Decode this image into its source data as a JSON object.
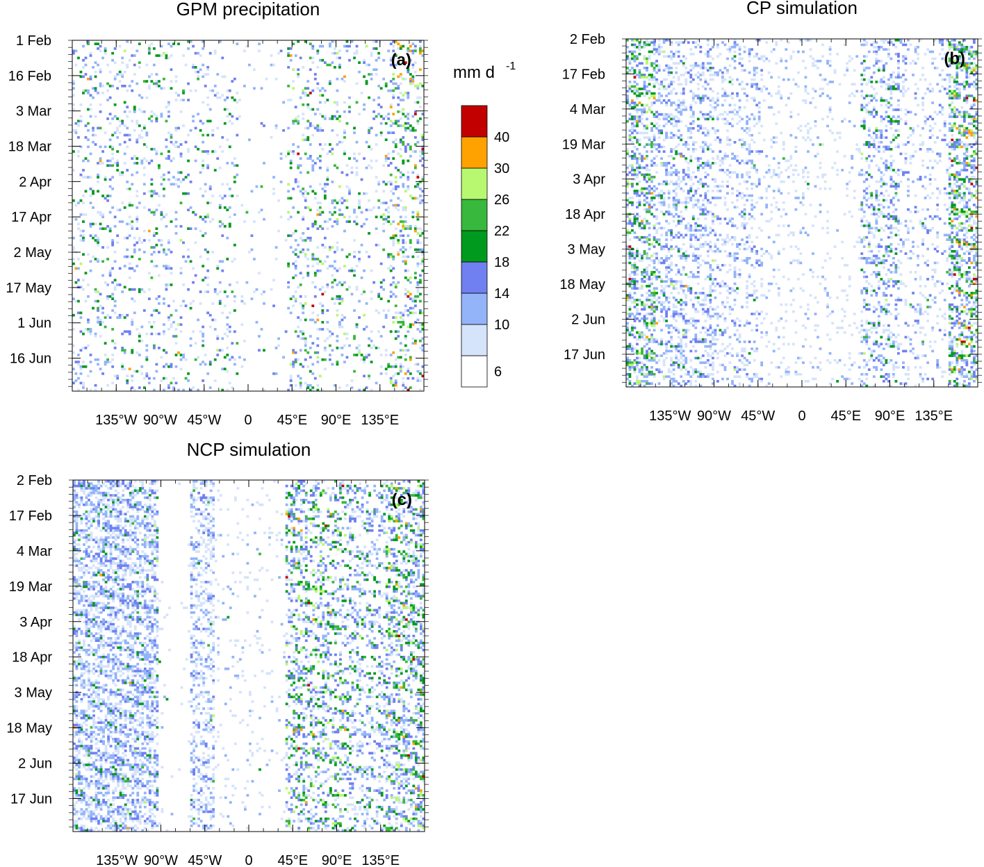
{
  "chart_data": [
    {
      "type": "heatmap",
      "panel_label": "(a)",
      "title": "GPM precipitation",
      "xlabel": "",
      "ylabel": "",
      "x_ticks": [
        "135°W",
        "90°W",
        "45°W",
        "0",
        "45°E",
        "90°E",
        "135°E"
      ],
      "x_tick_values": [
        -135,
        -90,
        -45,
        0,
        45,
        90,
        135
      ],
      "x_range": [
        -180,
        180
      ],
      "y_ticks": [
        "1 Feb",
        "16 Feb",
        "3 Mar",
        "18 Mar",
        "2 Apr",
        "17 Apr",
        "2 May",
        "17 May",
        "1 Jun",
        "16 Jun"
      ],
      "y_range": [
        "1 Feb",
        "29 Jun"
      ],
      "y_direction": "time increases downward",
      "colorbar": "shared",
      "structure": "scattered, mostly eastward-propagating rain streaks across all longitudes; most intense near 150°E–180° and around 60°E–90°E"
    },
    {
      "type": "heatmap",
      "panel_label": "(b)",
      "title": "CP simulation",
      "xlabel": "",
      "ylabel": "",
      "x_ticks": [
        "135°W",
        "90°W",
        "45°W",
        "0",
        "45°E",
        "90°E",
        "135°E"
      ],
      "x_tick_values": [
        -135,
        -90,
        -45,
        0,
        45,
        90,
        135
      ],
      "x_range": [
        -180,
        180
      ],
      "y_ticks": [
        "2 Feb",
        "17 Feb",
        "4 Mar",
        "19 Mar",
        "3 Apr",
        "18 Apr",
        "3 May",
        "18 May",
        "2 Jun",
        "17 Jun"
      ],
      "y_range": [
        "2 Feb",
        "30 Jun"
      ],
      "y_direction": "time increases downward",
      "colorbar": "shared",
      "structure": "widespread light precipitation (6–14 mm/d) with heavier bands near 180°, 150°E–180°E and 60°E–90°E"
    },
    {
      "type": "heatmap",
      "panel_label": "(c)",
      "title": "NCP simulation",
      "xlabel": "",
      "ylabel": "",
      "x_ticks": [
        "135°W",
        "90°W",
        "45°W",
        "0",
        "45°E",
        "90°E",
        "135°E"
      ],
      "x_tick_values": [
        -135,
        -90,
        -45,
        0,
        45,
        90,
        135
      ],
      "x_range": [
        -180,
        180
      ],
      "y_ticks": [
        "2 Feb",
        "17 Feb",
        "4 Mar",
        "19 Mar",
        "3 Apr",
        "18 Apr",
        "3 May",
        "18 May",
        "2 Jun",
        "17 Jun"
      ],
      "y_range": [
        "2 Feb",
        "30 Jun"
      ],
      "y_direction": "time increases downward",
      "colorbar": "shared",
      "structure": "light precipitation west of 90°W and near 45°W, dry band 90°W–60°W and 30°W–40°E; curved intense streaks 40°E–180°"
    }
  ],
  "colorbar": {
    "unit_base": "mm d",
    "unit_exponent": "-1",
    "levels": [
      6,
      10,
      14,
      18,
      22,
      26,
      30,
      40
    ],
    "colors": [
      "#ffffff",
      "#d5e3fb",
      "#93b4f8",
      "#7080f0",
      "#009a1e",
      "#38b83c",
      "#b8f870",
      "#ffa200",
      "#c20000"
    ]
  }
}
